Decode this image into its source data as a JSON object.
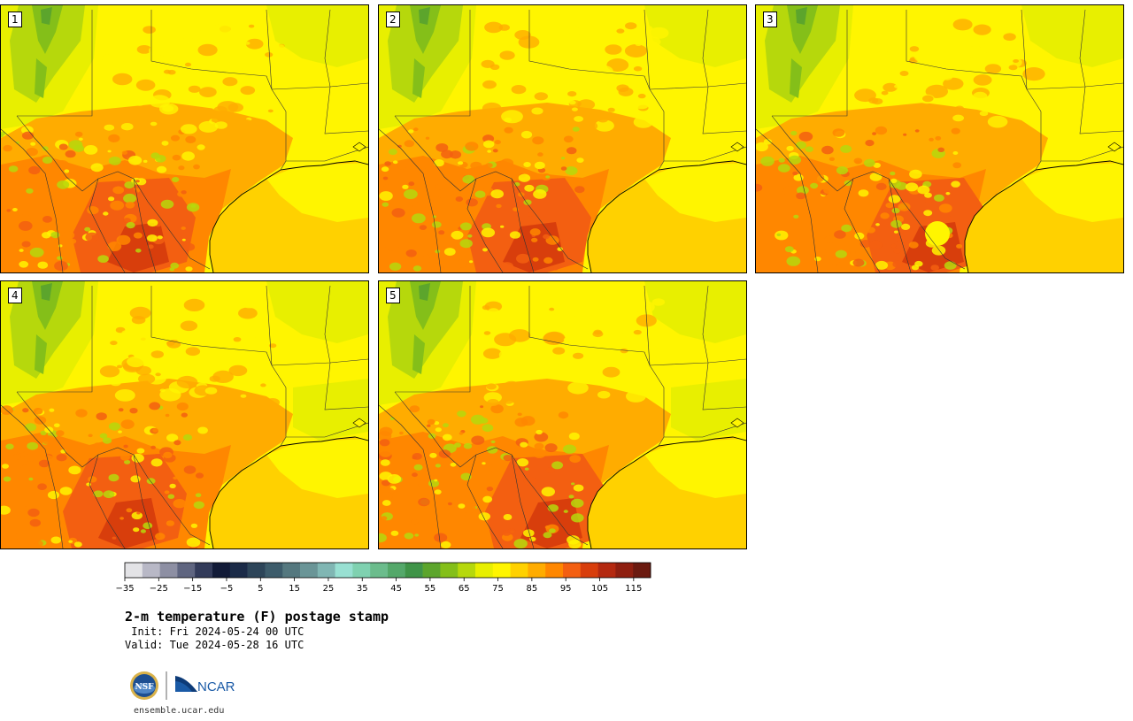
{
  "panels": [
    {
      "label": "1",
      "variant": 1
    },
    {
      "label": "2",
      "variant": 2
    },
    {
      "label": "3",
      "variant": 3
    },
    {
      "label": "4",
      "variant": 4
    },
    {
      "label": "5",
      "variant": 5
    }
  ],
  "colorbar": {
    "unit": "F",
    "min": -35,
    "max": 120,
    "step": 5,
    "tick_labels": [
      "−35",
      "−25",
      "−15",
      "−5",
      "5",
      "15",
      "25",
      "35",
      "45",
      "55",
      "65",
      "75",
      "85",
      "95",
      "105",
      "115"
    ],
    "tick_values": [
      -35,
      -25,
      -15,
      -5,
      5,
      15,
      25,
      35,
      45,
      55,
      65,
      75,
      85,
      95,
      105,
      115
    ],
    "colors": [
      "#e3e3e6",
      "#b8b8c6",
      "#8d8fa3",
      "#5f6580",
      "#333b5a",
      "#121b38",
      "#1b2b48",
      "#2d4559",
      "#3d5c6b",
      "#55787f",
      "#6a9597",
      "#80b6b3",
      "#98e0d2",
      "#7fd1b0",
      "#6bbc8c",
      "#54a86a",
      "#3f9448",
      "#5ca52c",
      "#84bf19",
      "#b6d80c",
      "#e8ef00",
      "#fff500",
      "#ffd100",
      "#ffac00",
      "#ff8700",
      "#f35f11",
      "#d83e0c",
      "#b42910",
      "#8f1f10",
      "#6b1a10"
    ]
  },
  "title": "2-m temperature (F) postage stamp",
  "init": " Init: Fri 2024-05-24 00 UTC",
  "valid": "Valid: Tue 2024-05-28 16 UTC",
  "logo_text": {
    "nsf": "NSF",
    "ncar": "NCAR"
  },
  "url": "ensemble.ucar.edu"
}
